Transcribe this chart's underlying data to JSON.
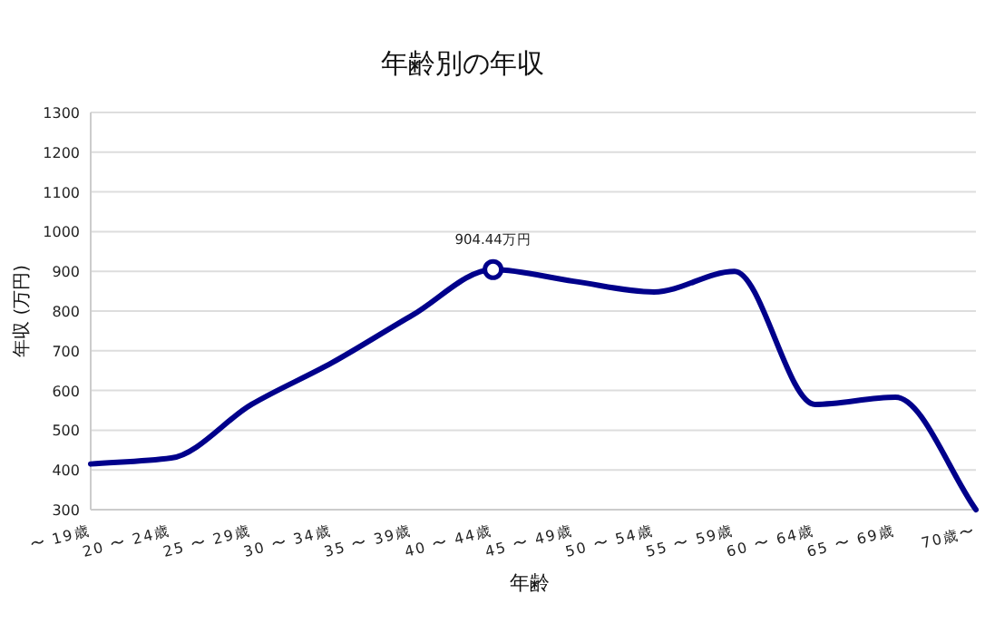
{
  "chart_data": {
    "type": "line",
    "title": "年齢別の年収",
    "xlabel": "年齢",
    "ylabel": "年収 (万円)",
    "categories": [
      "〜 19歳",
      "20 〜 24歳",
      "25 〜 29歳",
      "30 〜 34歳",
      "35 〜 39歳",
      "40 〜 44歳",
      "45 〜 49歳",
      "50 〜 54歳",
      "55 〜 59歳",
      "60 〜 64歳",
      "65 〜 69歳",
      "70歳〜"
    ],
    "series": [
      {
        "color": "#00008b",
        "values": [
          415,
          430,
          565,
          670,
          790,
          904.44,
          875,
          848,
          900,
          565,
          583,
          300
        ]
      }
    ],
    "annotations": [
      {
        "text": "904.44万円",
        "x": "40 〜 44歳",
        "y": 904.44
      }
    ],
    "ylim": [
      300,
      1300
    ],
    "yticks": [
      300,
      400,
      500,
      600,
      700,
      800,
      900,
      1000,
      1100,
      1200,
      1300
    ],
    "grid": "y",
    "marker": "none",
    "line_style": "solid"
  }
}
